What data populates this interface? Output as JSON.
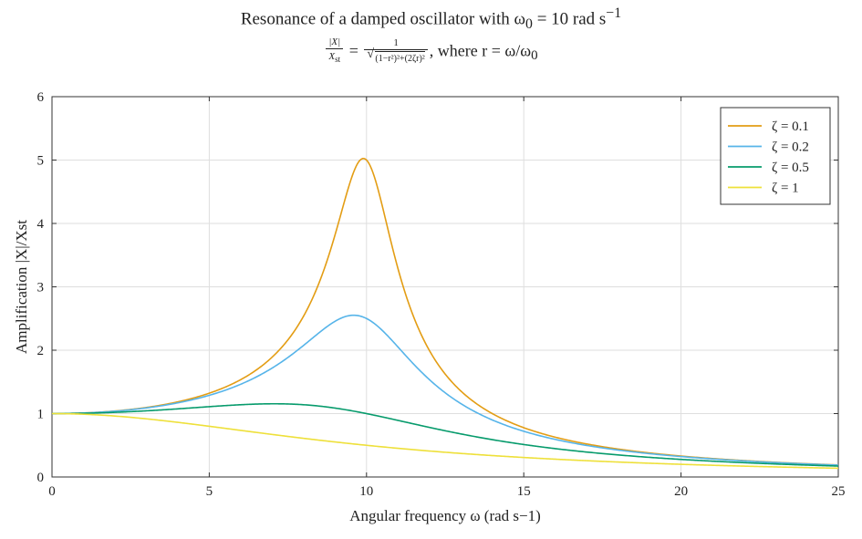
{
  "header": {
    "title_main": "Resonance of a damped oscillator with ω",
    "title_sub0": "0",
    "title_eq": " = 10 rad s",
    "title_exp": "−1",
    "formula_lhs_num": "|X|",
    "formula_lhs_den_var": "X",
    "formula_lhs_den_sub": "st",
    "formula_eq": "=",
    "formula_rhs_num": "1",
    "formula_rhs_den": "(1−r²)²+(2ζr)²",
    "formula_where": ", where r = ω/ω",
    "formula_where_sub": "0"
  },
  "chart_data": {
    "type": "line",
    "title": "Resonance of a damped oscillator with ω0 = 10 rad s−1",
    "subtitle": "|X|/Xst = 1/√((1−r²)²+(2ζr)²), where r = ω/ω0",
    "xlabel": "Angular frequency ω (rad s−1)",
    "ylabel": "Amplification |X|/Xst",
    "xlim": [
      0,
      25
    ],
    "ylim": [
      0,
      6
    ],
    "xticks": [
      0,
      5,
      10,
      15,
      20,
      25
    ],
    "yticks": [
      0,
      1,
      2,
      3,
      4,
      5,
      6
    ],
    "grid": true,
    "legend_position": "top-right",
    "omega0": 10,
    "x": [
      0,
      1,
      2,
      3,
      4,
      5,
      6,
      7,
      8,
      8.5,
      9,
      9.5,
      9.9,
      10,
      10.5,
      11,
      12,
      13,
      14,
      15,
      16,
      17,
      18,
      19,
      20,
      21,
      22,
      23,
      24,
      25
    ],
    "series": [
      {
        "name": "ζ = 0.1",
        "color": "#e39d14",
        "values": [
          1.0,
          1.01,
          1.041,
          1.097,
          1.187,
          1.322,
          1.538,
          1.898,
          2.55,
          3.05,
          3.76,
          4.49,
          5.02,
          5.0,
          4.28,
          3.36,
          2.03,
          1.38,
          1.02,
          0.79,
          0.64,
          0.52,
          0.44,
          0.375,
          0.33,
          0.29,
          0.26,
          0.23,
          0.21,
          0.19
        ]
      },
      {
        "name": "ζ = 0.2",
        "color": "#56b4e9",
        "values": [
          1.0,
          1.01,
          1.038,
          1.087,
          1.164,
          1.273,
          1.429,
          1.656,
          1.98,
          2.2,
          2.43,
          2.55,
          2.53,
          2.5,
          2.34,
          2.07,
          1.6,
          1.25,
          0.99,
          0.8,
          0.65,
          0.54,
          0.46,
          0.39,
          0.33,
          0.29,
          0.26,
          0.23,
          0.21,
          0.19
        ]
      },
      {
        "name": "ζ = 0.5",
        "color": "#079b6c",
        "values": [
          1.0,
          1.0,
          1.02,
          1.05,
          1.08,
          1.11,
          1.14,
          1.155,
          1.14,
          1.1,
          1.06,
          1.03,
          1.01,
          1.0,
          0.95,
          0.9,
          0.79,
          0.68,
          0.58,
          0.5,
          0.43,
          0.37,
          0.32,
          0.28,
          0.25,
          0.22,
          0.2,
          0.18,
          0.17,
          0.16
        ]
      },
      {
        "name": "ζ = 1",
        "color": "#eee03a",
        "values": [
          1.0,
          0.99,
          0.96,
          0.92,
          0.86,
          0.8,
          0.74,
          0.67,
          0.61,
          0.58,
          0.55,
          0.53,
          0.51,
          0.5,
          0.48,
          0.45,
          0.41,
          0.37,
          0.34,
          0.31,
          0.28,
          0.26,
          0.24,
          0.22,
          0.2,
          0.18,
          0.17,
          0.16,
          0.15,
          0.14
        ]
      }
    ]
  }
}
